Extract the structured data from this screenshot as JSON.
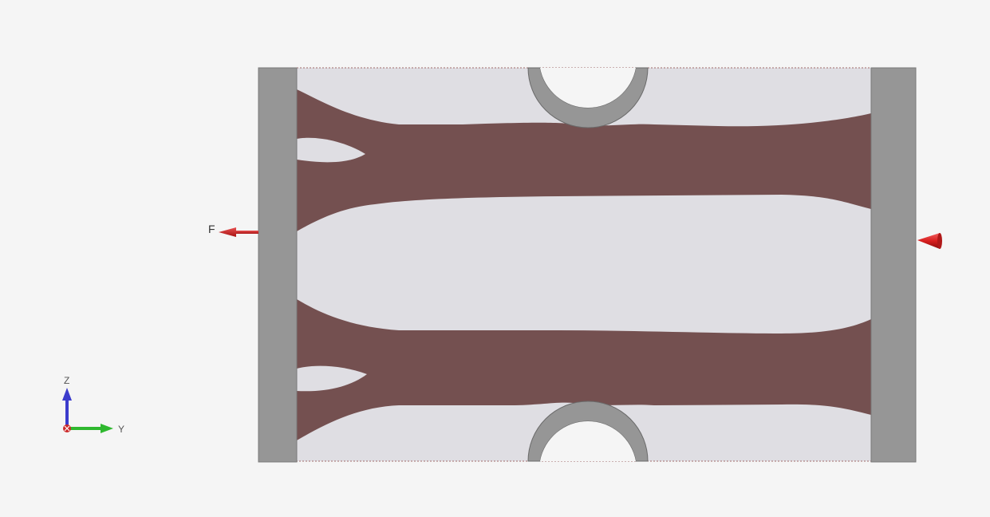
{
  "viewport": {
    "background": "#f5f5f5"
  },
  "model": {
    "material_color": "#745050",
    "void_color": "#dfdee3",
    "fixture_color": "#969696",
    "hole_color": "#969696",
    "outline_color": "#a06a6a"
  },
  "load": {
    "label": "F",
    "arrow_color": "#cc2020",
    "icon": "arrow-left-icon"
  },
  "support": {
    "icon": "cone-constraint-icon",
    "color": "#d81e1e"
  },
  "triad": {
    "z_label": "Z",
    "y_label": "Y",
    "z_color": "#3c3ccc",
    "y_color": "#2fb82f",
    "x_color": "#cc2a2a"
  }
}
